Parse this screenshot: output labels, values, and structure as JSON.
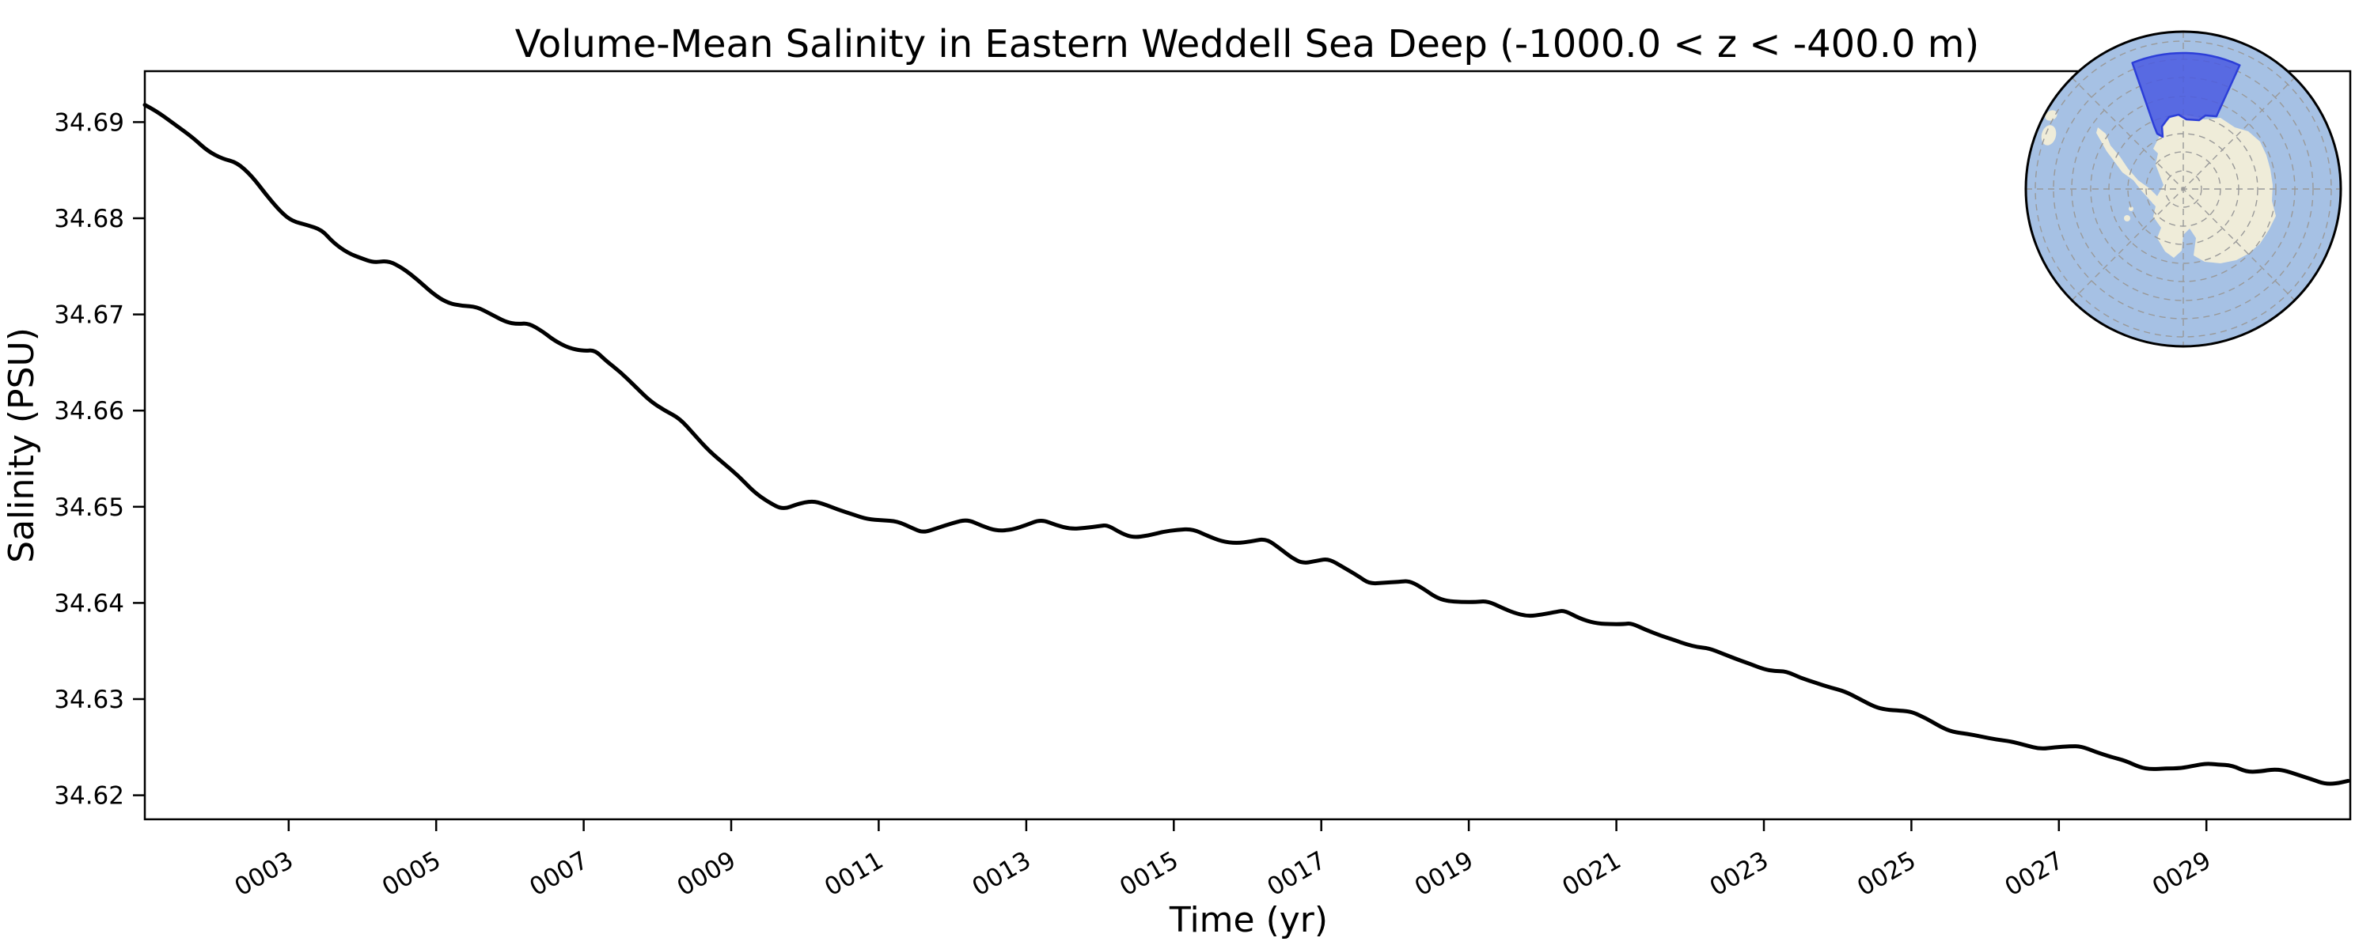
{
  "chart_data": {
    "type": "line",
    "title": "Volume-Mean Salinity in Eastern Weddell Sea Deep (-1000.0 < z < -400.0 m)",
    "xlabel": "Time (yr)",
    "ylabel": "Salinity (PSU)",
    "xlim": [
      1.05,
      30.95
    ],
    "ylim": [
      34.6175,
      34.6953
    ],
    "grid": false,
    "legend_position": "none",
    "line": {
      "color": "#000000",
      "width": 5
    },
    "xticks": {
      "values": [
        3,
        5,
        7,
        9,
        11,
        13,
        15,
        17,
        19,
        21,
        23,
        25,
        27,
        29
      ],
      "labels": [
        "0003",
        "0005",
        "0007",
        "0009",
        "0011",
        "0013",
        "0015",
        "0017",
        "0019",
        "0021",
        "0023",
        "0025",
        "0027",
        "0029"
      ],
      "rotation_deg": 30
    },
    "yticks": {
      "values": [
        34.62,
        34.63,
        34.64,
        34.65,
        34.66,
        34.67,
        34.68,
        34.69
      ],
      "labels": [
        "34.62",
        "34.63",
        "34.64",
        "34.65",
        "34.66",
        "34.67",
        "34.68",
        "34.69"
      ]
    },
    "series": [
      {
        "name": "volume-mean salinity",
        "x": [
          1.05,
          1.2,
          1.45,
          1.7,
          1.9,
          2.1,
          2.3,
          2.5,
          2.7,
          2.9,
          3.05,
          3.25,
          3.45,
          3.6,
          3.8,
          4.0,
          4.15,
          4.35,
          4.55,
          4.75,
          4.95,
          5.15,
          5.35,
          5.55,
          5.75,
          5.95,
          6.1,
          6.25,
          6.45,
          6.6,
          6.8,
          7.0,
          7.15,
          7.3,
          7.5,
          7.7,
          7.9,
          8.1,
          8.3,
          8.5,
          8.7,
          8.9,
          9.1,
          9.3,
          9.5,
          9.7,
          9.9,
          10.1,
          10.25,
          10.45,
          10.65,
          10.85,
          11.05,
          11.25,
          11.45,
          11.6,
          11.8,
          12.0,
          12.2,
          12.4,
          12.6,
          12.8,
          13.0,
          13.2,
          13.4,
          13.6,
          13.8,
          14.0,
          14.1,
          14.3,
          14.45,
          14.65,
          14.85,
          15.05,
          15.25,
          15.45,
          15.65,
          15.85,
          16.05,
          16.25,
          16.45,
          16.6,
          16.75,
          16.95,
          17.1,
          17.3,
          17.5,
          17.65,
          17.85,
          18.05,
          18.2,
          18.4,
          18.55,
          18.7,
          18.9,
          19.1,
          19.25,
          19.45,
          19.6,
          19.8,
          20.0,
          20.2,
          20.3,
          20.5,
          20.7,
          20.9,
          21.1,
          21.2,
          21.4,
          21.6,
          21.8,
          21.95,
          22.1,
          22.25,
          22.45,
          22.65,
          22.8,
          23.0,
          23.15,
          23.3,
          23.5,
          23.7,
          23.9,
          24.1,
          24.3,
          24.5,
          24.65,
          24.85,
          25.0,
          25.2,
          25.4,
          25.55,
          25.75,
          25.95,
          26.15,
          26.35,
          26.55,
          26.75,
          26.95,
          27.15,
          27.3,
          27.5,
          27.7,
          27.9,
          28.1,
          28.25,
          28.45,
          28.65,
          28.85,
          29.0,
          29.15,
          29.35,
          29.55,
          29.75,
          29.9,
          30.05,
          30.25,
          30.45,
          30.6,
          30.75,
          30.92
        ],
        "y": [
          34.6918,
          34.6912,
          34.6898,
          34.6884,
          34.687,
          34.6862,
          34.6858,
          34.6844,
          34.6824,
          34.6806,
          34.6797,
          34.6793,
          34.6788,
          34.6775,
          34.6764,
          34.6758,
          34.6754,
          34.6756,
          34.6748,
          34.6736,
          34.6722,
          34.6712,
          34.6709,
          34.6708,
          34.67,
          34.6692,
          34.669,
          34.6691,
          34.6682,
          34.6673,
          34.6665,
          34.6662,
          34.6663,
          34.6652,
          34.664,
          34.6625,
          34.661,
          34.66,
          34.6592,
          34.6575,
          34.6558,
          34.6545,
          34.6532,
          34.6516,
          34.6505,
          34.6497,
          34.6503,
          34.6506,
          34.6503,
          34.6497,
          34.6492,
          34.6487,
          34.6486,
          34.6485,
          34.6478,
          34.6473,
          34.6478,
          34.6483,
          34.6487,
          34.648,
          34.6475,
          34.6476,
          34.6481,
          34.6487,
          34.6481,
          34.6477,
          34.6478,
          34.648,
          34.6481,
          34.6472,
          34.6468,
          34.647,
          34.6474,
          34.6476,
          34.6477,
          34.647,
          34.6464,
          34.6462,
          34.6464,
          34.6467,
          34.6456,
          34.6447,
          34.6441,
          34.6444,
          34.6446,
          34.6437,
          34.6428,
          34.642,
          34.6421,
          34.6422,
          34.6423,
          34.6414,
          34.6406,
          34.6402,
          34.6401,
          34.6401,
          34.6402,
          34.6395,
          34.639,
          34.6386,
          34.6388,
          34.6391,
          34.6392,
          34.6384,
          34.6379,
          34.6378,
          34.6378,
          34.6379,
          34.6372,
          34.6366,
          34.6361,
          34.6357,
          34.6354,
          34.6353,
          34.6347,
          34.6341,
          34.6337,
          34.6331,
          34.6329,
          34.6329,
          34.6322,
          34.6317,
          34.6312,
          34.6308,
          34.63,
          34.6292,
          34.6289,
          34.6288,
          34.6287,
          34.628,
          34.6271,
          34.6266,
          34.6264,
          34.6261,
          34.6258,
          34.6256,
          34.6252,
          34.6248,
          34.625,
          34.6251,
          34.6251,
          34.6245,
          34.624,
          34.6236,
          34.6229,
          34.6227,
          34.6228,
          34.6228,
          34.6231,
          34.6233,
          34.6232,
          34.6231,
          34.6224,
          34.6225,
          34.6227,
          34.6226,
          34.6221,
          34.6216,
          34.6212,
          34.6212,
          34.6215
        ]
      }
    ],
    "inset_map": {
      "description": "South polar stereographic map of Antarctica",
      "highlight_region": "Eastern Weddell Sea",
      "ocean_color": "#a6c1e4",
      "land_color": "#efecd9",
      "graticule_color": "#999999",
      "highlight_fill": "#4a5ae2",
      "highlight_stroke": "#2c3ed8",
      "rim_color": "#000000"
    }
  }
}
